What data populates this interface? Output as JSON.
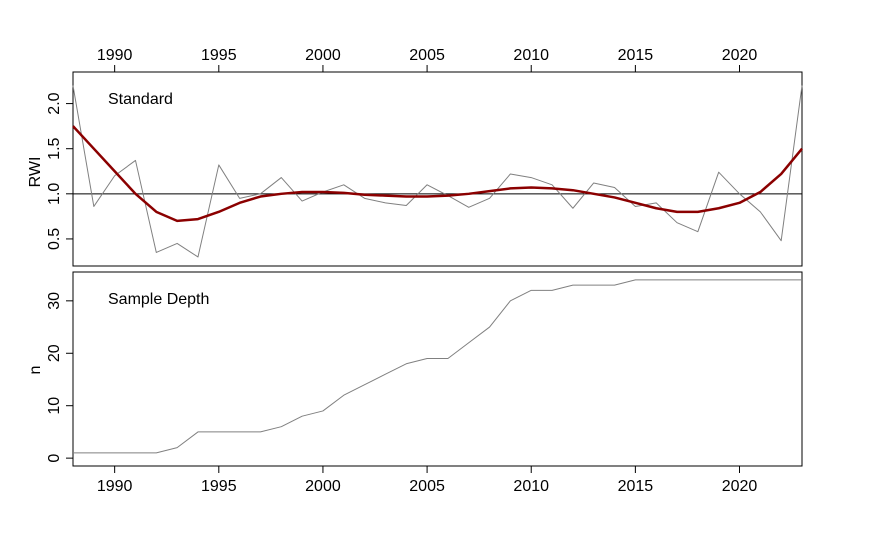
{
  "chart_data": [
    {
      "type": "line",
      "panel": "top",
      "label": "Standard",
      "ylabel": "RWI",
      "x": [
        1988,
        1989,
        1990,
        1991,
        1992,
        1993,
        1994,
        1995,
        1996,
        1997,
        1998,
        1999,
        2000,
        2001,
        2002,
        2003,
        2004,
        2005,
        2006,
        2007,
        2008,
        2009,
        2010,
        2011,
        2012,
        2013,
        2014,
        2015,
        2016,
        2017,
        2018,
        2019,
        2020,
        2021,
        2022,
        2023
      ],
      "xlim": [
        1988,
        2023
      ],
      "ylim": [
        0.2,
        2.35
      ],
      "xticks": [
        1990,
        1995,
        2000,
        2005,
        2010,
        2015,
        2020
      ],
      "yticks": [
        "0.5",
        "1.0",
        "1.5",
        "2.0"
      ],
      "reference_line": 1.0,
      "series": [
        {
          "role": "raw",
          "color": "#808080",
          "values": [
            2.2,
            0.86,
            1.2,
            1.37,
            0.35,
            0.45,
            0.3,
            1.32,
            0.95,
            1.0,
            1.18,
            0.92,
            1.02,
            1.1,
            0.95,
            0.9,
            0.87,
            1.1,
            0.98,
            0.85,
            0.95,
            1.22,
            1.18,
            1.1,
            0.84,
            1.12,
            1.07,
            0.86,
            0.9,
            0.68,
            0.58,
            1.24,
            1.0,
            0.8,
            0.48,
            2.2
          ]
        },
        {
          "role": "smooth",
          "color": "#8b0000",
          "values": [
            1.75,
            1.5,
            1.25,
            1.0,
            0.8,
            0.7,
            0.72,
            0.8,
            0.9,
            0.97,
            1.0,
            1.02,
            1.02,
            1.01,
            0.99,
            0.98,
            0.97,
            0.97,
            0.98,
            1.0,
            1.03,
            1.06,
            1.07,
            1.06,
            1.04,
            1.0,
            0.96,
            0.9,
            0.84,
            0.8,
            0.8,
            0.84,
            0.9,
            1.02,
            1.22,
            1.5
          ]
        }
      ]
    },
    {
      "type": "line",
      "panel": "bottom",
      "label": "Sample Depth",
      "ylabel": "n",
      "x": [
        1988,
        1989,
        1990,
        1991,
        1992,
        1993,
        1994,
        1995,
        1996,
        1997,
        1998,
        1999,
        2000,
        2001,
        2002,
        2003,
        2004,
        2005,
        2006,
        2007,
        2008,
        2009,
        2010,
        2011,
        2012,
        2013,
        2014,
        2015,
        2016,
        2017,
        2018,
        2019,
        2020,
        2021,
        2022,
        2023
      ],
      "xlim": [
        1988,
        2023
      ],
      "ylim": [
        -1.5,
        35.5
      ],
      "xticks": [
        1990,
        1995,
        2000,
        2005,
        2010,
        2015,
        2020
      ],
      "yticks": [
        "0",
        "10",
        "20",
        "30"
      ],
      "series": [
        {
          "role": "depth",
          "color": "#808080",
          "values": [
            1,
            1,
            1,
            1,
            1,
            2,
            5,
            5,
            5,
            5,
            6,
            8,
            9,
            12,
            14,
            16,
            18,
            19,
            19,
            22,
            25,
            30,
            32,
            32,
            33,
            33,
            33,
            34,
            34,
            34,
            34,
            34,
            34,
            34,
            34,
            34
          ]
        }
      ]
    }
  ]
}
